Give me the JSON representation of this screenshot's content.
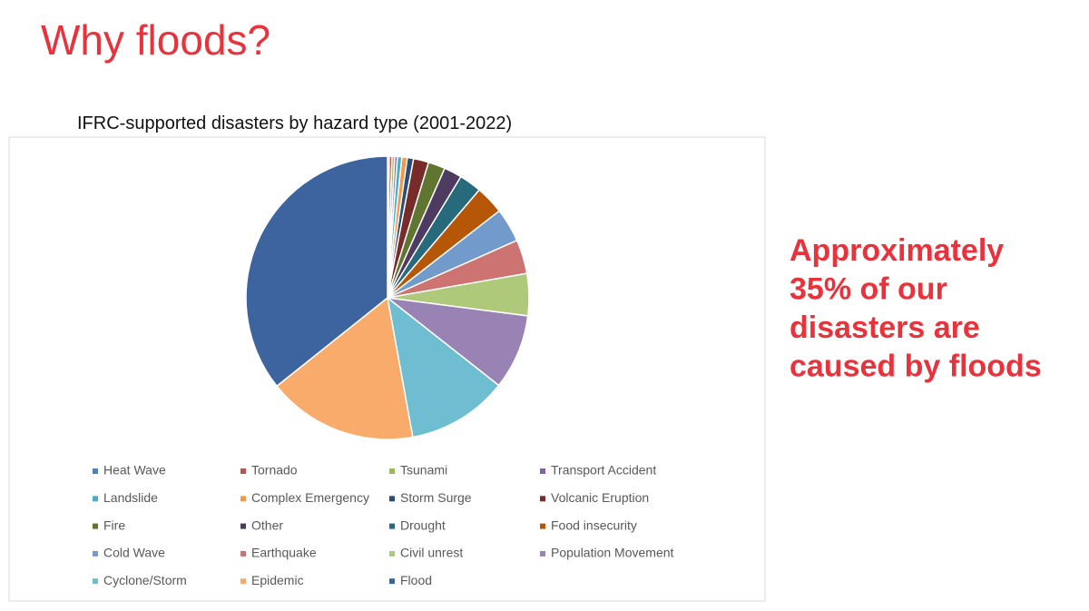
{
  "slide": {
    "title": "Why floods?",
    "callout": [
      "Approximately",
      "35% of our",
      "disasters are",
      "caused by floods"
    ]
  },
  "chart_data": {
    "type": "pie",
    "title": "IFRC-supported disasters by hazard type (2001-2022)",
    "categories": [
      "Heat Wave",
      "Tornado",
      "Tsunami",
      "Transport Accident",
      "Landslide",
      "Complex Emergency",
      "Storm Surge",
      "Volcanic Eruption",
      "Fire",
      "Other",
      "Drought",
      "Food insecurity",
      "Cold Wave",
      "Earthquake",
      "Civil unrest",
      "Population Movement",
      "Cyclone/Storm",
      "Epidemic",
      "Flood"
    ],
    "values": [
      0.2,
      0.3,
      0.3,
      0.3,
      0.5,
      0.6,
      0.7,
      1.7,
      1.9,
      2,
      2.5,
      3.2,
      3.8,
      3.8,
      4.7,
      8.4,
      11.3,
      16.8,
      35
    ],
    "colors": [
      "#4f81bd",
      "#c0504d",
      "#9bbb59",
      "#8064a2",
      "#4bacc6",
      "#f79646",
      "#2c4d75",
      "#772c2a",
      "#5f7530",
      "#4d3b62",
      "#276a7c",
      "#b65708",
      "#729aca",
      "#cd7371",
      "#afc97a",
      "#9983b5",
      "#6fbdd1",
      "#f9ab6b",
      "#3e64a0"
    ],
    "legend": "bottom"
  }
}
